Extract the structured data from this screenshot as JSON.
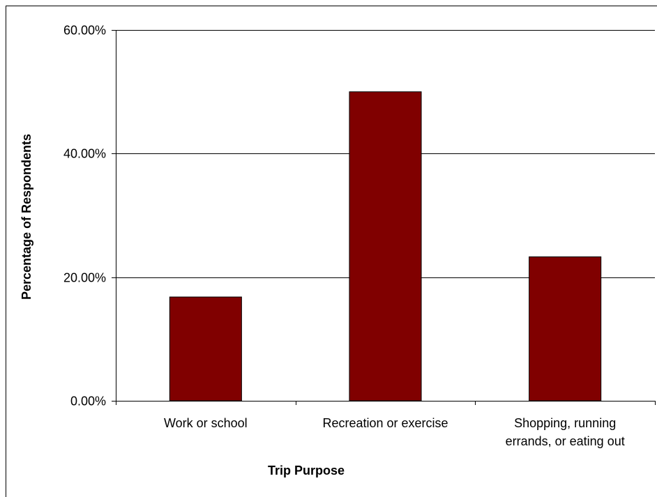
{
  "chart_data": {
    "type": "bar",
    "title": "",
    "xlabel": "Trip Purpose",
    "ylabel": "Percentage of Respondents",
    "categories": [
      [
        "Work or school"
      ],
      [
        "Recreation or exercise"
      ],
      [
        "Shopping, running",
        "errands, or eating out"
      ]
    ],
    "values": [
      16.8,
      50.0,
      23.3
    ],
    "ylim": [
      0,
      60
    ],
    "yticks": [
      0,
      20,
      40,
      60
    ],
    "ytick_labels": [
      "0.00%",
      "20.00%",
      "40.00%",
      "60.00%"
    ],
    "grid": true,
    "legend": "none",
    "bar_color": "#800000",
    "bar_edge_color": "#000000"
  }
}
